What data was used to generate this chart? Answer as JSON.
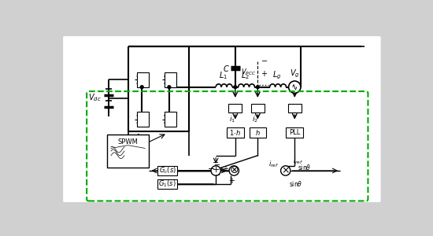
{
  "bg_color": "#d0d0d0",
  "white": "#ffffff",
  "black": "#000000",
  "green": "#00aa00",
  "fig_width": 5.5,
  "fig_height": 3.0,
  "dpi": 100
}
